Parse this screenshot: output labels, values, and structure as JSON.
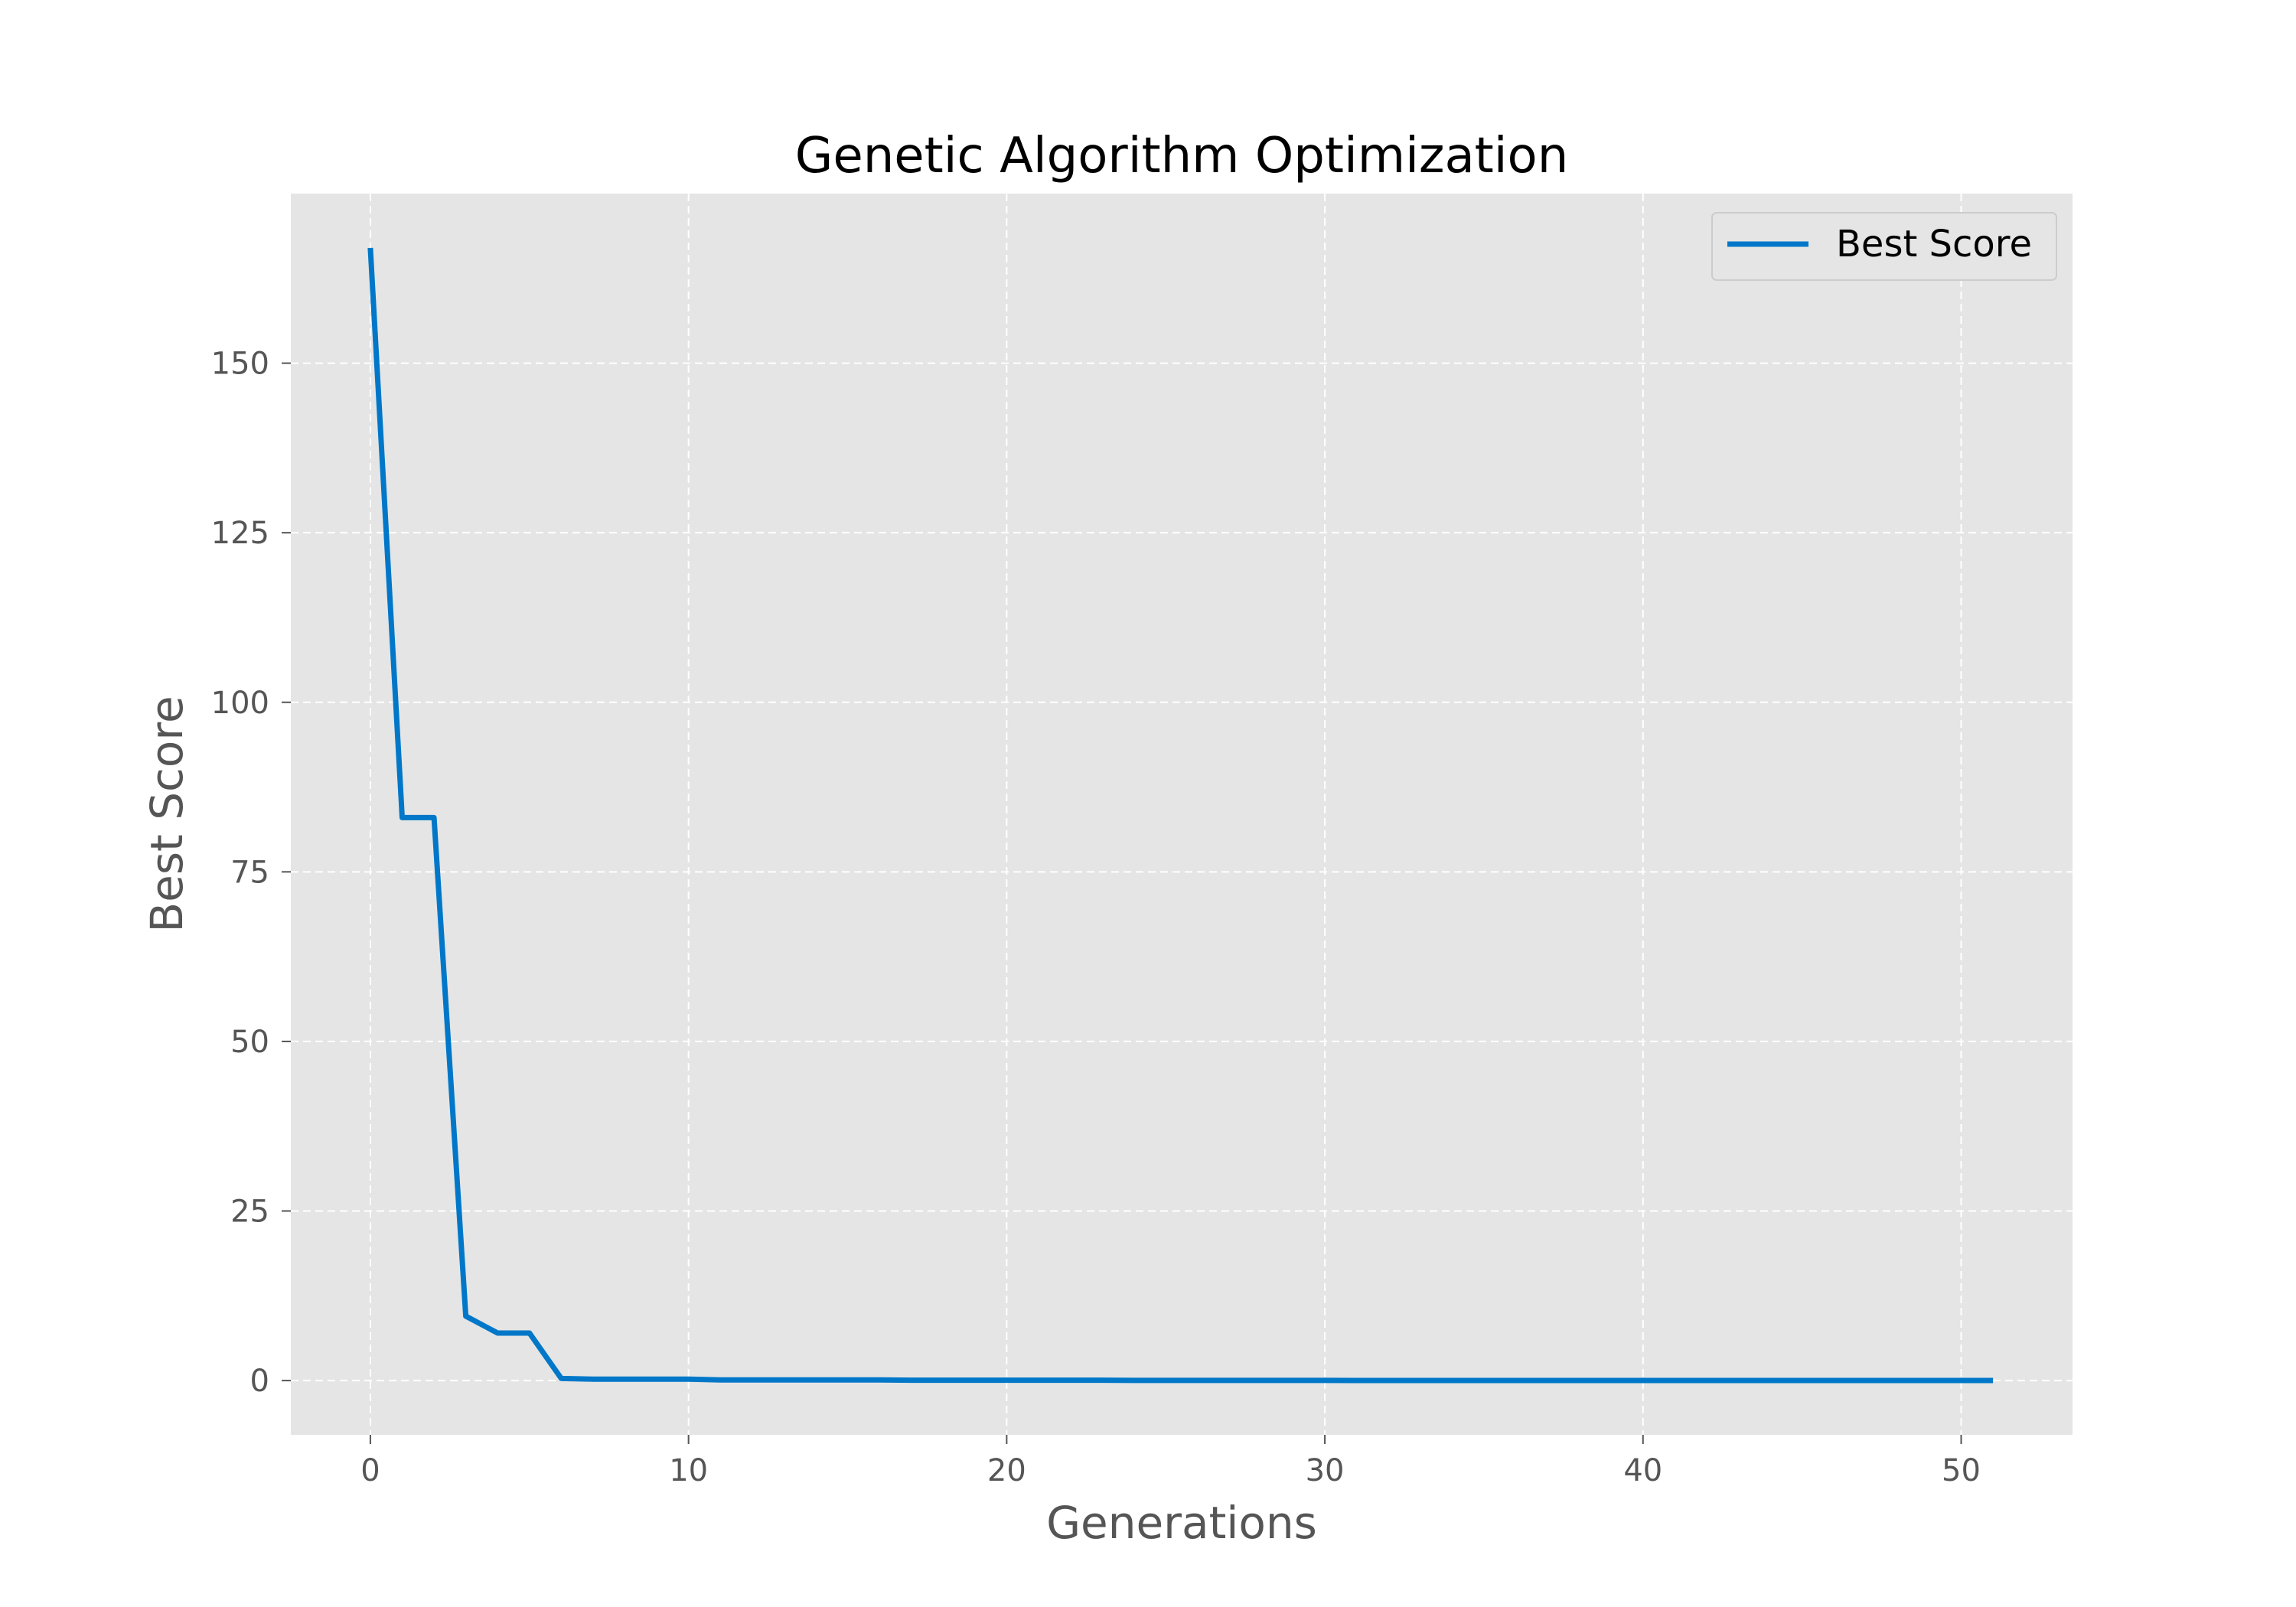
{
  "chart_data": {
    "type": "line",
    "title": "Genetic Algorithm Optimization",
    "xlabel": "Generations",
    "ylabel": "Best Score",
    "xlim": [
      -2.5,
      53.5
    ],
    "ylim": [
      -8,
      175
    ],
    "x_ticks": [
      0,
      10,
      20,
      30,
      40,
      50
    ],
    "y_ticks": [
      0,
      25,
      50,
      75,
      100,
      125,
      150
    ],
    "grid": true,
    "legend_position": "upper right",
    "series": [
      {
        "name": "Best Score",
        "color": "#0077c8",
        "x": [
          0,
          1,
          2,
          3,
          4,
          5,
          6,
          7,
          8,
          9,
          10,
          11,
          12,
          13,
          14,
          15,
          16,
          17,
          18,
          19,
          20,
          21,
          22,
          23,
          24,
          25,
          26,
          27,
          28,
          29,
          30,
          31,
          32,
          33,
          34,
          35,
          36,
          37,
          38,
          39,
          40,
          41,
          42,
          43,
          44,
          45,
          46,
          47,
          48,
          49,
          50,
          51
        ],
        "y": [
          167,
          83,
          83,
          9.5,
          7,
          7,
          0.3,
          0.2,
          0.2,
          0.2,
          0.2,
          0.1,
          0.1,
          0.1,
          0.1,
          0.1,
          0.1,
          0.05,
          0.05,
          0.05,
          0.05,
          0.05,
          0.05,
          0.05,
          0.02,
          0.02,
          0.02,
          0.02,
          0.02,
          0.02,
          0.02,
          0.01,
          0.01,
          0.01,
          0.01,
          0.01,
          0.01,
          0.01,
          0.01,
          0.01,
          0.01,
          0.01,
          0.01,
          0.01,
          0.01,
          0.01,
          0.01,
          0.01,
          0.01,
          0.01,
          0.01,
          0.01
        ]
      }
    ]
  }
}
